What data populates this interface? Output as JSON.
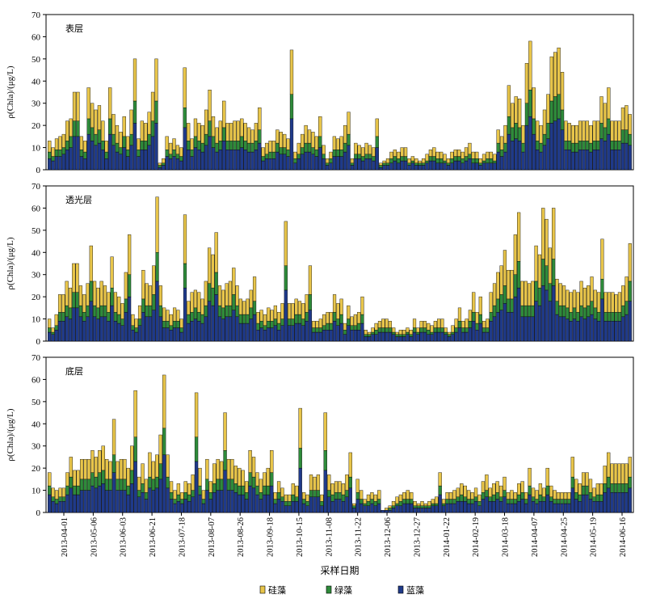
{
  "chart_data": {
    "type": "bar",
    "stacked": true,
    "ylabel": "ρ(Chla)/(μg/L)",
    "xlabel": "采样日期",
    "ylim": [
      0,
      70
    ],
    "yticks": [
      0,
      10,
      20,
      30,
      40,
      50,
      60,
      70
    ],
    "x_tick_labels": [
      "2013-04-01",
      "2013-05-06",
      "2013-06-03",
      "2013-06-21",
      "2013-07-18",
      "2013-08-07",
      "2013-08-26",
      "2013-09-18",
      "2013-10-15",
      "2013-11-08",
      "2013-11-22",
      "2013-12-06",
      "2013-12-27",
      "2014-01-22",
      "2014-02-19",
      "2014-03-18",
      "2014-04-07",
      "2014-04-25",
      "2014-05-19",
      "2014-06-16"
    ],
    "legend": [
      {
        "name": "硅藻",
        "color": "#E8C54A"
      },
      {
        "name": "绿藻",
        "color": "#2E8B3A"
      },
      {
        "name": "蓝藻",
        "color": "#1F3A8A"
      }
    ],
    "legend_position": "bottom",
    "panels": [
      {
        "label": "表层",
        "totals": [
          13,
          10,
          14,
          15,
          16,
          22,
          23,
          35,
          35,
          15,
          13,
          37,
          30,
          27,
          29,
          22,
          13,
          37,
          25,
          20,
          17,
          24,
          15,
          27,
          50,
          14,
          22,
          21,
          26,
          35,
          50,
          3,
          5,
          15,
          12,
          14,
          11,
          10,
          46,
          21,
          14,
          23,
          21,
          20,
          27,
          36,
          24,
          19,
          22,
          31,
          21,
          21,
          22,
          22,
          23,
          21,
          19,
          18,
          21,
          28,
          10,
          12,
          13,
          13,
          18,
          17,
          16,
          14,
          54,
          8,
          12,
          16,
          20,
          18,
          17,
          15,
          24,
          11,
          5,
          8,
          15,
          14,
          15,
          20,
          26,
          5,
          12,
          11,
          10,
          12,
          11,
          10,
          23,
          3,
          4,
          5,
          8,
          9,
          8,
          10,
          10,
          5,
          6,
          5,
          4,
          5,
          7,
          9,
          10,
          8,
          8,
          7,
          5,
          8,
          9,
          9,
          8,
          10,
          12,
          8,
          8,
          5,
          7,
          8,
          8,
          7,
          18,
          15,
          20,
          38,
          30,
          33,
          32,
          20,
          48,
          58,
          37,
          22,
          20,
          27,
          34,
          51,
          53,
          55,
          44,
          22,
          21,
          20,
          20,
          22,
          22,
          22,
          20,
          22,
          22,
          33,
          30,
          37,
          22,
          22,
          22,
          28,
          29,
          25
        ]
      },
      {
        "label": "透光层",
        "totals": [
          10,
          6,
          12,
          21,
          21,
          27,
          24,
          35,
          35,
          25,
          21,
          26,
          43,
          27,
          24,
          27,
          25,
          22,
          38,
          22,
          20,
          17,
          31,
          48,
          12,
          10,
          16,
          32,
          26,
          25,
          34,
          65,
          25,
          15,
          14,
          12,
          15,
          14,
          10,
          57,
          18,
          22,
          23,
          22,
          19,
          27,
          42,
          39,
          49,
          25,
          23,
          26,
          27,
          33,
          25,
          19,
          18,
          19,
          23,
          29,
          13,
          14,
          12,
          15,
          14,
          16,
          13,
          17,
          54,
          17,
          17,
          19,
          18,
          17,
          21,
          34,
          9,
          9,
          10,
          12,
          13,
          13,
          21,
          17,
          19,
          8,
          16,
          11,
          12,
          13,
          20,
          5,
          4,
          6,
          8,
          9,
          10,
          10,
          9,
          6,
          4,
          5,
          5,
          6,
          5,
          10,
          6,
          9,
          9,
          8,
          7,
          9,
          10,
          10,
          6,
          4,
          7,
          10,
          15,
          9,
          10,
          14,
          22,
          13,
          20,
          9,
          10,
          22,
          26,
          31,
          34,
          41,
          32,
          32,
          48,
          58,
          27,
          27,
          26,
          27,
          43,
          39,
          60,
          55,
          42,
          60,
          28,
          26,
          25,
          23,
          22,
          23,
          22,
          27,
          24,
          25,
          29,
          23,
          22,
          46,
          22,
          22,
          22,
          21,
          22,
          25,
          29,
          44
        ]
      },
      {
        "label": "底层",
        "totals": [
          18,
          11,
          10,
          11,
          11,
          18,
          25,
          19,
          19,
          24,
          24,
          24,
          28,
          25,
          28,
          30,
          24,
          23,
          42,
          23,
          24,
          24,
          20,
          30,
          55,
          16,
          22,
          15,
          27,
          23,
          26,
          35,
          62,
          26,
          14,
          10,
          13,
          9,
          14,
          13,
          17,
          54,
          20,
          10,
          24,
          14,
          22,
          24,
          23,
          45,
          24,
          24,
          21,
          20,
          19,
          14,
          28,
          25,
          18,
          15,
          18,
          20,
          28,
          9,
          14,
          11,
          8,
          8,
          13,
          12,
          47,
          9,
          8,
          17,
          16,
          17,
          8,
          45,
          17,
          13,
          14,
          14,
          13,
          17,
          27,
          4,
          15,
          10,
          6,
          8,
          9,
          8,
          10,
          1,
          2,
          3,
          5,
          7,
          8,
          9,
          10,
          9,
          5,
          4,
          5,
          4,
          5,
          6,
          7,
          18,
          6,
          9,
          9,
          10,
          11,
          13,
          12,
          10,
          9,
          11,
          8,
          14,
          17,
          11,
          13,
          14,
          12,
          16,
          9,
          10,
          9,
          13,
          14,
          9,
          20,
          11,
          10,
          13,
          11,
          20,
          12,
          10,
          9,
          9,
          9,
          9,
          25,
          15,
          13,
          18,
          18,
          15,
          11,
          13,
          13,
          21,
          27,
          22,
          22,
          22,
          22,
          22,
          25
        ]
      }
    ]
  }
}
